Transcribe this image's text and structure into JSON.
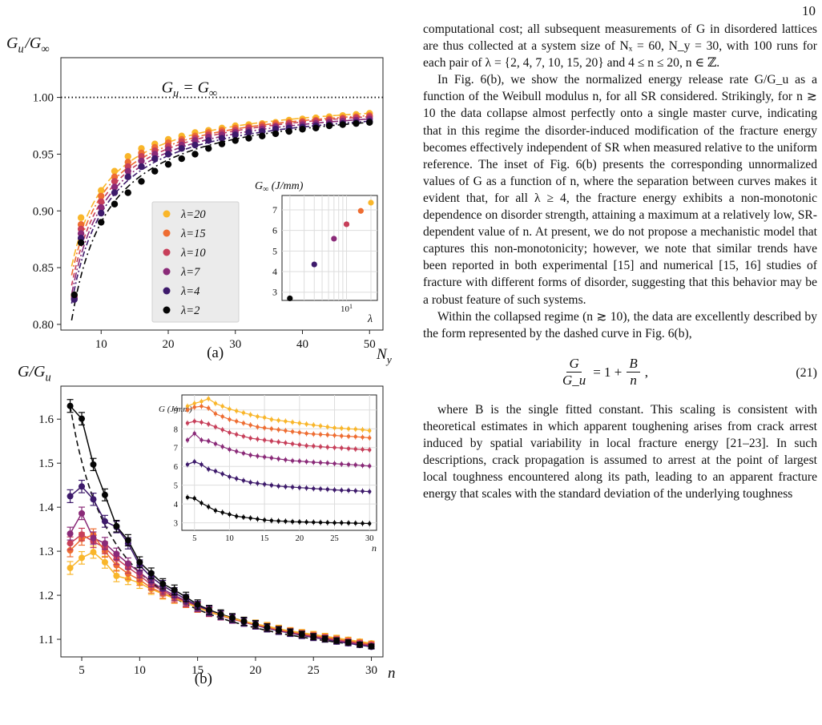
{
  "page_number": "10",
  "figure_a": {
    "y_label": "G_u/G_∞",
    "x_label": "N_y",
    "caption": "(a)",
    "ref_line_label": "G_u = G_∞",
    "ref_value": 1.0,
    "x_range": [
      4,
      52
    ],
    "y_range": [
      0.795,
      1.035
    ],
    "x_ticks": [
      10,
      20,
      30,
      40,
      50
    ],
    "y_ticks": [
      0.8,
      0.85,
      0.9,
      0.95,
      1.0
    ],
    "y_tick_labels": [
      "0.80",
      "0.85",
      "0.90",
      "0.95",
      "1.00"
    ],
    "x_tick_labels": [
      "10",
      "20",
      "30",
      "40",
      "50"
    ],
    "legend_labels": [
      "λ=20",
      "λ=15",
      "λ=10",
      "λ=7",
      "λ=4",
      "λ=2"
    ],
    "inset": {
      "y_label": "G_∞ (J/mm)",
      "x_label": "λ",
      "x_tick_label": "10¹",
      "y_ticks": [
        3,
        4,
        5,
        6,
        7
      ],
      "y_tick_labels": [
        "3",
        "4",
        "5",
        "6",
        "7"
      ]
    }
  },
  "figure_b": {
    "y_label": "G/G_u",
    "x_label": "n",
    "caption": "(b)",
    "x_range": [
      3.2,
      31
    ],
    "y_range": [
      1.06,
      1.675
    ],
    "x_ticks": [
      5,
      10,
      15,
      20,
      25,
      30
    ],
    "x_tick_labels": [
      "5",
      "10",
      "15",
      "20",
      "25",
      "30"
    ],
    "y_ticks": [
      1.1,
      1.2,
      1.3,
      1.4,
      1.5,
      1.6
    ],
    "y_tick_labels": [
      "1.1",
      "1.2",
      "1.3",
      "1.4",
      "1.5",
      "1.6"
    ],
    "inset": {
      "y_label": "G (J/mm)",
      "x_label": "n",
      "x_ticks": [
        5,
        10,
        15,
        20,
        25,
        30
      ],
      "x_tick_labels": [
        "5",
        "10",
        "15",
        "20",
        "25",
        "30"
      ],
      "y_ticks": [
        3,
        4,
        5,
        6,
        7,
        8,
        9
      ],
      "y_tick_labels": [
        "3",
        "4",
        "5",
        "6",
        "7",
        "8",
        "9"
      ]
    }
  },
  "colors": {
    "lambda_20": "#f9b62a",
    "lambda_15": "#ee6d32",
    "lambda_10": "#c73f5a",
    "lambda_7": "#8a2a78",
    "lambda_4": "#3d1a6b",
    "lambda_2": "#050505"
  },
  "chart_data": [
    {
      "type": "scatter",
      "xlabel": "N_y",
      "ylabel": "G_u/G_∞",
      "xlim": [
        4,
        52
      ],
      "ylim": [
        0.795,
        1.035
      ],
      "grid": false,
      "legend": "center-left",
      "x": [
        6,
        7,
        10,
        12,
        14,
        16,
        18,
        20,
        22,
        24,
        26,
        28,
        30,
        32,
        34,
        36,
        38,
        40,
        42,
        44,
        46,
        48,
        50
      ],
      "series": [
        {
          "name": "λ=20",
          "values": [
            0.826,
            0.894,
            0.918,
            0.935,
            0.948,
            0.955,
            0.959,
            0.963,
            0.966,
            0.969,
            0.971,
            0.973,
            0.975,
            0.976,
            0.977,
            0.978,
            0.98,
            0.981,
            0.982,
            0.983,
            0.984,
            0.985,
            0.986
          ]
        },
        {
          "name": "λ=15",
          "values": [
            0.825,
            0.888,
            0.913,
            0.93,
            0.943,
            0.951,
            0.956,
            0.96,
            0.963,
            0.966,
            0.969,
            0.971,
            0.973,
            0.974,
            0.976,
            0.977,
            0.978,
            0.979,
            0.98,
            0.981,
            0.982,
            0.983,
            0.984
          ]
        },
        {
          "name": "λ=10",
          "values": [
            0.824,
            0.884,
            0.908,
            0.926,
            0.939,
            0.948,
            0.953,
            0.957,
            0.961,
            0.964,
            0.967,
            0.969,
            0.971,
            0.973,
            0.974,
            0.975,
            0.977,
            0.978,
            0.979,
            0.98,
            0.981,
            0.982,
            0.983
          ]
        },
        {
          "name": "λ=7",
          "values": [
            0.823,
            0.88,
            0.903,
            0.921,
            0.935,
            0.944,
            0.95,
            0.954,
            0.958,
            0.962,
            0.965,
            0.967,
            0.969,
            0.971,
            0.972,
            0.974,
            0.975,
            0.976,
            0.977,
            0.978,
            0.979,
            0.98,
            0.981
          ]
        },
        {
          "name": "λ=4",
          "values": [
            0.822,
            0.876,
            0.898,
            0.916,
            0.93,
            0.939,
            0.946,
            0.95,
            0.955,
            0.958,
            0.962,
            0.964,
            0.967,
            0.969,
            0.97,
            0.972,
            0.973,
            0.974,
            0.975,
            0.976,
            0.977,
            0.978,
            0.979
          ]
        },
        {
          "name": "λ=2",
          "values": [
            0.826,
            0.872,
            0.89,
            0.906,
            0.916,
            0.926,
            0.935,
            0.941,
            0.946,
            0.95,
            0.955,
            0.959,
            0.962,
            0.964,
            0.966,
            0.968,
            0.97,
            0.972,
            0.973,
            0.975,
            0.976,
            0.977,
            0.978
          ]
        }
      ]
    },
    {
      "type": "scatter",
      "xlabel": "λ",
      "ylabel": "G_∞ (J/mm)",
      "x_scale": "log",
      "xlim": [
        1.6,
        24
      ],
      "ylim": [
        2.6,
        7.7
      ],
      "grid": true,
      "x": [
        2,
        4,
        7,
        10,
        15,
        20
      ],
      "values": [
        2.7,
        4.35,
        5.6,
        6.3,
        6.95,
        7.35
      ]
    },
    {
      "type": "scatter",
      "xlabel": "n",
      "ylabel": "G/G_u",
      "xlim": [
        3.2,
        31
      ],
      "ylim": [
        1.06,
        1.675
      ],
      "grid": false,
      "fit": "G/G_u = 1 + B/n",
      "x": [
        4,
        5,
        6,
        7,
        8,
        9,
        10,
        11,
        12,
        13,
        14,
        15,
        16,
        17,
        18,
        19,
        20,
        21,
        22,
        23,
        24,
        25,
        26,
        27,
        28,
        29,
        30
      ],
      "series": [
        {
          "name": "λ=20",
          "values": [
            1.262,
            1.285,
            1.298,
            1.275,
            1.244,
            1.237,
            1.228,
            1.214,
            1.203,
            1.193,
            1.183,
            1.172,
            1.163,
            1.155,
            1.148,
            1.141,
            1.135,
            1.13,
            1.124,
            1.119,
            1.115,
            1.111,
            1.107,
            1.103,
            1.099,
            1.095,
            1.091
          ]
        },
        {
          "name": "λ=15",
          "values": [
            1.302,
            1.328,
            1.337,
            1.3,
            1.268,
            1.249,
            1.235,
            1.217,
            1.205,
            1.194,
            1.183,
            1.172,
            1.162,
            1.154,
            1.147,
            1.14,
            1.134,
            1.128,
            1.122,
            1.118,
            1.113,
            1.109,
            1.105,
            1.101,
            1.097,
            1.093,
            1.089
          ]
        },
        {
          "name": "λ=10",
          "values": [
            1.318,
            1.338,
            1.322,
            1.308,
            1.283,
            1.263,
            1.245,
            1.224,
            1.21,
            1.197,
            1.185,
            1.173,
            1.162,
            1.154,
            1.146,
            1.139,
            1.133,
            1.127,
            1.121,
            1.116,
            1.112,
            1.107,
            1.103,
            1.099,
            1.095,
            1.091,
            1.087
          ]
        },
        {
          "name": "λ=7",
          "values": [
            1.34,
            1.386,
            1.33,
            1.318,
            1.294,
            1.272,
            1.252,
            1.231,
            1.214,
            1.2,
            1.187,
            1.174,
            1.163,
            1.154,
            1.146,
            1.139,
            1.132,
            1.126,
            1.12,
            1.115,
            1.11,
            1.106,
            1.102,
            1.097,
            1.093,
            1.089,
            1.085
          ]
        },
        {
          "name": "λ=4",
          "values": [
            1.425,
            1.447,
            1.418,
            1.368,
            1.355,
            1.318,
            1.268,
            1.241,
            1.222,
            1.206,
            1.191,
            1.176,
            1.165,
            1.155,
            1.147,
            1.139,
            1.132,
            1.125,
            1.119,
            1.114,
            1.109,
            1.104,
            1.1,
            1.095,
            1.091,
            1.087,
            1.083
          ]
        },
        {
          "name": "λ=2",
          "values": [
            1.63,
            1.601,
            1.497,
            1.428,
            1.357,
            1.325,
            1.275,
            1.25,
            1.226,
            1.212,
            1.196,
            1.179,
            1.167,
            1.157,
            1.149,
            1.141,
            1.134,
            1.127,
            1.121,
            1.116,
            1.111,
            1.106,
            1.101,
            1.097,
            1.093,
            1.088,
            1.084
          ]
        }
      ]
    },
    {
      "type": "line",
      "xlabel": "n",
      "ylabel": "G (J/mm)",
      "xlim": [
        3.2,
        31
      ],
      "ylim": [
        2.6,
        9.8
      ],
      "grid": true,
      "x": [
        4,
        5,
        6,
        7,
        8,
        9,
        10,
        11,
        12,
        13,
        14,
        15,
        16,
        17,
        18,
        19,
        20,
        21,
        22,
        23,
        24,
        25,
        26,
        27,
        28,
        29,
        30
      ],
      "series": [
        {
          "name": "λ=20",
          "values": [
            9.2,
            9.35,
            9.45,
            9.6,
            9.35,
            9.2,
            9.05,
            8.95,
            8.85,
            8.75,
            8.65,
            8.6,
            8.5,
            8.45,
            8.4,
            8.35,
            8.3,
            8.25,
            8.2,
            8.15,
            8.1,
            8.05,
            8.03,
            8.0,
            7.98,
            7.95,
            7.9
          ]
        },
        {
          "name": "λ=15",
          "values": [
            9.0,
            9.15,
            9.2,
            9.1,
            8.8,
            8.65,
            8.5,
            8.4,
            8.3,
            8.2,
            8.1,
            8.05,
            8.0,
            7.95,
            7.9,
            7.85,
            7.8,
            7.75,
            7.72,
            7.7,
            7.68,
            7.65,
            7.62,
            7.6,
            7.58,
            7.55,
            7.52
          ]
        },
        {
          "name": "λ=10",
          "values": [
            8.3,
            8.4,
            8.35,
            8.25,
            8.1,
            7.95,
            7.8,
            7.7,
            7.6,
            7.5,
            7.45,
            7.4,
            7.35,
            7.3,
            7.25,
            7.2,
            7.15,
            7.1,
            7.08,
            7.05,
            7.02,
            7.0,
            6.98,
            6.95,
            6.92,
            6.9,
            6.88
          ]
        },
        {
          "name": "λ=7",
          "values": [
            7.4,
            7.75,
            7.4,
            7.35,
            7.2,
            7.05,
            6.9,
            6.8,
            6.7,
            6.6,
            6.55,
            6.5,
            6.45,
            6.4,
            6.35,
            6.3,
            6.28,
            6.25,
            6.22,
            6.2,
            6.18,
            6.15,
            6.12,
            6.1,
            6.08,
            6.05,
            6.02
          ]
        },
        {
          "name": "λ=4",
          "values": [
            6.1,
            6.25,
            6.1,
            5.85,
            5.75,
            5.6,
            5.45,
            5.35,
            5.25,
            5.15,
            5.1,
            5.05,
            5.0,
            4.95,
            4.92,
            4.9,
            4.87,
            4.85,
            4.82,
            4.8,
            4.78,
            4.75,
            4.73,
            4.72,
            4.7,
            4.68,
            4.66
          ]
        },
        {
          "name": "λ=2",
          "values": [
            4.35,
            4.3,
            4.05,
            3.85,
            3.65,
            3.55,
            3.45,
            3.35,
            3.3,
            3.25,
            3.2,
            3.15,
            3.12,
            3.1,
            3.08,
            3.06,
            3.05,
            3.04,
            3.03,
            3.02,
            3.01,
            3.0,
            3.0,
            2.99,
            2.98,
            2.97,
            2.96
          ]
        }
      ]
    }
  ],
  "text": {
    "p1": "computational cost; all subsequent measurements of G in disordered lattices are thus collected at a system size of Nₓ = 60, N_y = 30, with 100 runs for each pair of λ = {2, 4, 7, 10, 15, 20} and 4 ≤ n ≤ 20, n ∈ ℤ.",
    "p2": "In Fig. 6(b), we show the normalized energy release rate G/G_u as a function of the Weibull modulus n, for all SR considered. Strikingly, for n ≳ 10 the data collapse almost perfectly onto a single master curve, indicating that in this regime the disorder-induced modification of the fracture energy becomes effectively independent of SR when measured relative to the uniform reference. The inset of Fig. 6(b) presents the corresponding unnormalized values of G as a function of n, where the separation between curves makes it evident that, for all λ ≥ 4, the fracture energy exhibits a non-monotonic dependence on disorder strength, attaining a maximum at a relatively low, SR-dependent value of n. At present, we do not propose a mechanistic model that captures this non-monotonicity; however, we note that similar trends have been reported in both experimental [15] and numerical [15, 16] studies of fracture with different forms of disorder, suggesting that this behavior may be a robust feature of such systems.",
    "p3": "Within the collapsed regime (n ≳ 10), the data are excellently described by the form represented by the dashed curve in Fig. 6(b),",
    "eq_lhs_num": "G",
    "eq_lhs_den": "G_u",
    "eq_middle": "= 1 +",
    "eq_rhs_num": "B",
    "eq_rhs_den": "n",
    "eq_tail": ",",
    "eq_number": "(21)",
    "p4": "where B is the single fitted constant. This scaling is consistent with theoretical estimates in which apparent toughening arises from crack arrest induced by spatial variability in local fracture energy [21–23]. In such descriptions, crack propagation is assumed to arrest at the point of largest local toughness encountered along its path, leading to an apparent fracture energy that scales with the standard deviation of the underlying toughness"
  }
}
